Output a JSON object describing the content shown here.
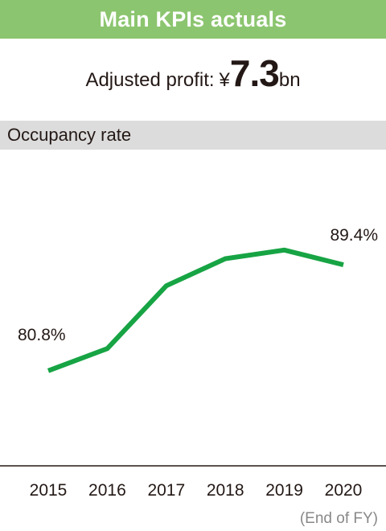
{
  "header": {
    "title": "Main KPIs actuals"
  },
  "profit": {
    "label": "Adjusted profit:",
    "currency": "¥",
    "value": "7.3",
    "unit": "bn"
  },
  "section": {
    "title": "Occupancy rate"
  },
  "chart_data": {
    "type": "line",
    "title": "Occupancy rate",
    "x": [
      "2015",
      "2016",
      "2017",
      "2018",
      "2019",
      "2020"
    ],
    "series": [
      {
        "values": [
          80.8,
          82.6,
          87.7,
          89.9,
          90.6,
          89.4
        ],
        "color": "#17a444"
      }
    ],
    "data_labels": [
      {
        "index": 0,
        "text": "80.8%"
      },
      {
        "index": 5,
        "text": "89.4%"
      }
    ],
    "ylim": [
      78.7,
      93.0
    ],
    "xlabel": "",
    "ylabel": "",
    "note": "(End of FY)",
    "grid": false,
    "axis_color": "#231815"
  }
}
